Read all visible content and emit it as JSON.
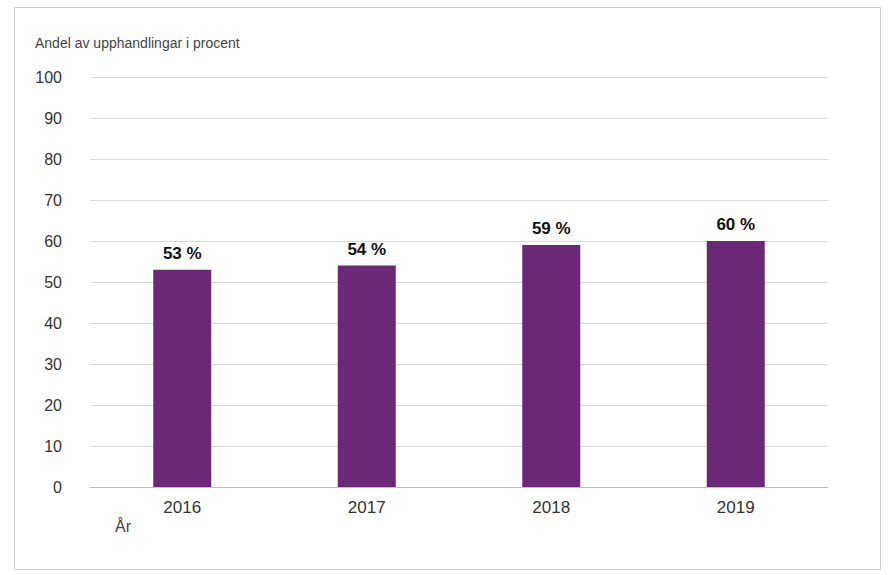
{
  "chart_data": {
    "type": "bar",
    "ylabel": "Andel av upphandlingar i procent",
    "xlabel": "År",
    "categories": [
      "2016",
      "2017",
      "2018",
      "2019"
    ],
    "values": [
      53,
      54,
      59,
      60
    ],
    "value_labels": [
      "53 %",
      "54 %",
      "59 %",
      "60 %"
    ],
    "color": "#6b2877",
    "ylim": [
      0,
      100
    ],
    "yticks": [
      0,
      10,
      20,
      30,
      40,
      50,
      60,
      70,
      80,
      90,
      100
    ],
    "grid": true,
    "data_labels": true
  }
}
